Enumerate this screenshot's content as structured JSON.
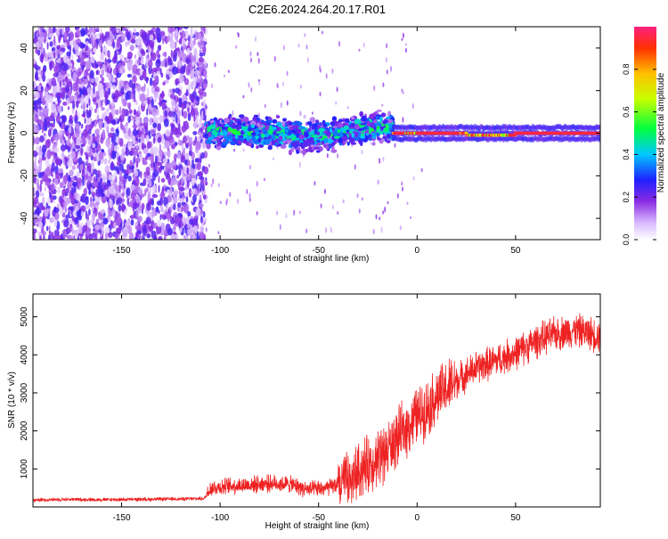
{
  "title": "C2E6.2024.264.20.17.R01",
  "chart_data": [
    {
      "type": "heatmap",
      "title": "C2E6.2024.264.20.17.R01",
      "xlabel": "Height of straight line (km)",
      "ylabel": "Frequency (Hz)",
      "xlim": [
        -195,
        93
      ],
      "ylim": [
        -50,
        50
      ],
      "xticks": [
        -150,
        -100,
        -50,
        0,
        50
      ],
      "yticks": [
        40,
        20,
        0,
        -20,
        -40
      ],
      "colorbar": {
        "label": "Normalized spectral amplitude",
        "range": [
          0.0,
          1.0
        ],
        "ticks": [
          "0.0",
          "0.2",
          "0.4",
          "0.6",
          "0.8"
        ]
      },
      "regions": [
        {
          "name": "diffuse-noise",
          "x_range": [
            -195,
            -107
          ],
          "f_range": [
            -50,
            50
          ],
          "amplitude": 0.15
        },
        {
          "name": "signal-band",
          "x_range": [
            -107,
            -12
          ],
          "f_center": 0,
          "f_halfwidth": 6,
          "amplitude": 0.4
        },
        {
          "name": "signal-line",
          "x_range": [
            -12,
            93
          ],
          "f_center": 0,
          "f_halfwidth": 3,
          "amplitude": 0.95
        }
      ]
    },
    {
      "type": "line",
      "title": "",
      "xlabel": "Height of straight line (km)",
      "ylabel": "SNR (10 * v/v)",
      "xlim": [
        -195,
        93
      ],
      "ylim": [
        0,
        5600
      ],
      "xticks": [
        -150,
        -100,
        -50,
        0,
        50
      ],
      "yticks": [
        1000,
        2000,
        3000,
        4000,
        5000
      ],
      "series": [
        {
          "name": "SNR",
          "color": "#ee2222",
          "x": [
            -195,
            -180,
            -160,
            -140,
            -120,
            -108,
            -105,
            -95,
            -85,
            -75,
            -65,
            -55,
            -45,
            -35,
            -28,
            -20,
            -15,
            -10,
            -5,
            0,
            5,
            10,
            15,
            20,
            25,
            30,
            35,
            40,
            45,
            50,
            55,
            60,
            65,
            70,
            75,
            80,
            85,
            93
          ],
          "values": [
            180,
            200,
            190,
            200,
            210,
            220,
            500,
            550,
            580,
            620,
            600,
            450,
            500,
            700,
            1000,
            1300,
            1500,
            1800,
            2100,
            2400,
            2600,
            2900,
            3100,
            3300,
            3500,
            3650,
            3750,
            3850,
            3950,
            4050,
            4200,
            4350,
            4450,
            4550,
            4600,
            4650,
            4600,
            4500
          ]
        }
      ]
    }
  ]
}
